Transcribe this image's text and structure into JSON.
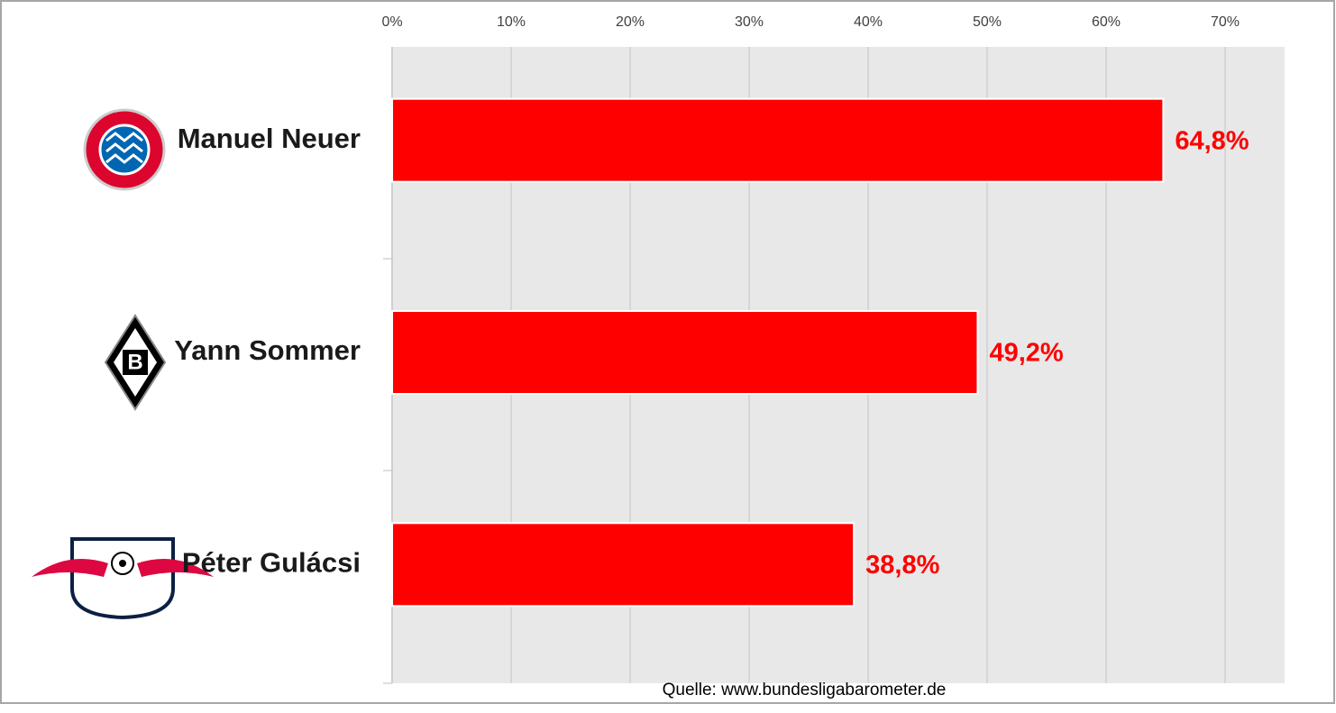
{
  "chart_data": {
    "type": "bar",
    "orientation": "horizontal",
    "categories": [
      "Manuel Neuer",
      "Yann Sommer",
      "Péter Gulácsi"
    ],
    "values": [
      64.8,
      49.2,
      38.8
    ],
    "value_labels": [
      "64,8%",
      "49,2%",
      "38,8%"
    ],
    "color": "#ff0000",
    "xlim": [
      0,
      75
    ],
    "xticks": [
      {
        "value": 0,
        "label": "0%"
      },
      {
        "value": 10,
        "label": "10%"
      },
      {
        "value": 20,
        "label": "20%"
      },
      {
        "value": 30,
        "label": "30%"
      },
      {
        "value": 40,
        "label": "40%"
      },
      {
        "value": 50,
        "label": "50%"
      },
      {
        "value": 60,
        "label": "60%"
      },
      {
        "value": 70,
        "label": "70%"
      }
    ],
    "grid": true,
    "source": "Quelle: www.bundesligabarometer.de"
  }
}
